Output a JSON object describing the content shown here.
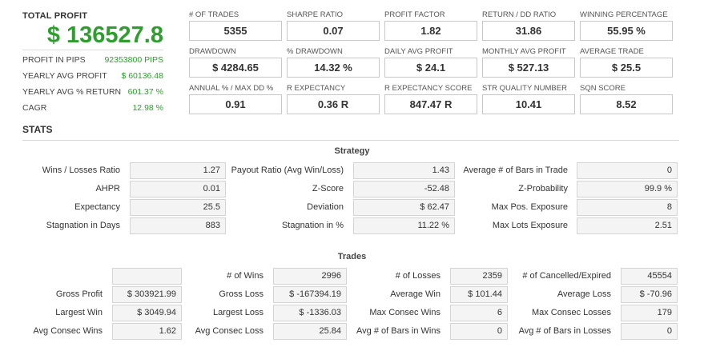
{
  "summary": {
    "total_profit_label": "TOTAL PROFIT",
    "total_profit_value": "$ 136527.8",
    "items": [
      {
        "label": "PROFIT IN PIPS",
        "value": "92353800 PIPS"
      },
      {
        "label": "YEARLY AVG PROFIT",
        "value": "$ 60136.48"
      },
      {
        "label": "YEARLY AVG % RETURN",
        "value": "601.37 %"
      },
      {
        "label": "CAGR",
        "value": "12.98 %"
      }
    ]
  },
  "metrics": [
    {
      "label": "# OF TRADES",
      "value": "5355"
    },
    {
      "label": "SHARPE RATIO",
      "value": "0.07"
    },
    {
      "label": "PROFIT FACTOR",
      "value": "1.82"
    },
    {
      "label": "RETURN / DD RATIO",
      "value": "31.86"
    },
    {
      "label": "WINNING PERCENTAGE",
      "value": "55.95 %"
    },
    {
      "label": "DRAWDOWN",
      "value": "$ 4284.65"
    },
    {
      "label": "% DRAWDOWN",
      "value": "14.32 %"
    },
    {
      "label": "DAILY AVG PROFIT",
      "value": "$ 24.1"
    },
    {
      "label": "MONTHLY AVG PROFIT",
      "value": "$ 527.13"
    },
    {
      "label": "AVERAGE TRADE",
      "value": "$ 25.5"
    },
    {
      "label": "ANNUAL % / MAX DD %",
      "value": "0.91"
    },
    {
      "label": "R EXPECTANCY",
      "value": "0.36 R"
    },
    {
      "label": "R EXPECTANCY SCORE",
      "value": "847.47 R"
    },
    {
      "label": "STR QUALITY NUMBER",
      "value": "10.41"
    },
    {
      "label": "SQN SCORE",
      "value": "8.52"
    }
  ],
  "stats_title": "STATS",
  "strategy": {
    "title": "Strategy",
    "rows": [
      [
        {
          "label": "Wins / Losses Ratio",
          "value": "1.27"
        },
        {
          "label": "Payout Ratio (Avg Win/Loss)",
          "value": "1.43"
        },
        {
          "label": "Average # of Bars in Trade",
          "value": "0"
        }
      ],
      [
        {
          "label": "AHPR",
          "value": "0.01"
        },
        {
          "label": "Z-Score",
          "value": "-52.48"
        },
        {
          "label": "Z-Probability",
          "value": "99.9 %"
        }
      ],
      [
        {
          "label": "Expectancy",
          "value": "25.5"
        },
        {
          "label": "Deviation",
          "value": "$ 62.47"
        },
        {
          "label": "Max Pos. Exposure",
          "value": "8"
        }
      ],
      [
        {
          "label": "Stagnation in Days",
          "value": "883"
        },
        {
          "label": "Stagnation in %",
          "value": "11.22 %"
        },
        {
          "label": "Max Lots Exposure",
          "value": "2.51"
        }
      ]
    ]
  },
  "trades": {
    "title": "Trades",
    "rows": [
      [
        {
          "label": "",
          "value": ""
        },
        {
          "label": "# of Wins",
          "value": "2996"
        },
        {
          "label": "# of Losses",
          "value": "2359"
        },
        {
          "label": "# of Cancelled/Expired",
          "value": "45554"
        }
      ],
      [
        {
          "label": "Gross Profit",
          "value": "$ 303921.99"
        },
        {
          "label": "Gross Loss",
          "value": "$ -167394.19"
        },
        {
          "label": "Average Win",
          "value": "$ 101.44"
        },
        {
          "label": "Average Loss",
          "value": "$ -70.96"
        }
      ],
      [
        {
          "label": "Largest Win",
          "value": "$ 3049.94"
        },
        {
          "label": "Largest Loss",
          "value": "$ -1336.03"
        },
        {
          "label": "Max Consec Wins",
          "value": "6"
        },
        {
          "label": "Max Consec Losses",
          "value": "179"
        }
      ],
      [
        {
          "label": "Avg Consec Wins",
          "value": "1.62"
        },
        {
          "label": "Avg Consec Loss",
          "value": "25.84"
        },
        {
          "label": "Avg # of Bars in Wins",
          "value": "0"
        },
        {
          "label": "Avg # of Bars in Losses",
          "value": "0"
        }
      ]
    ]
  }
}
